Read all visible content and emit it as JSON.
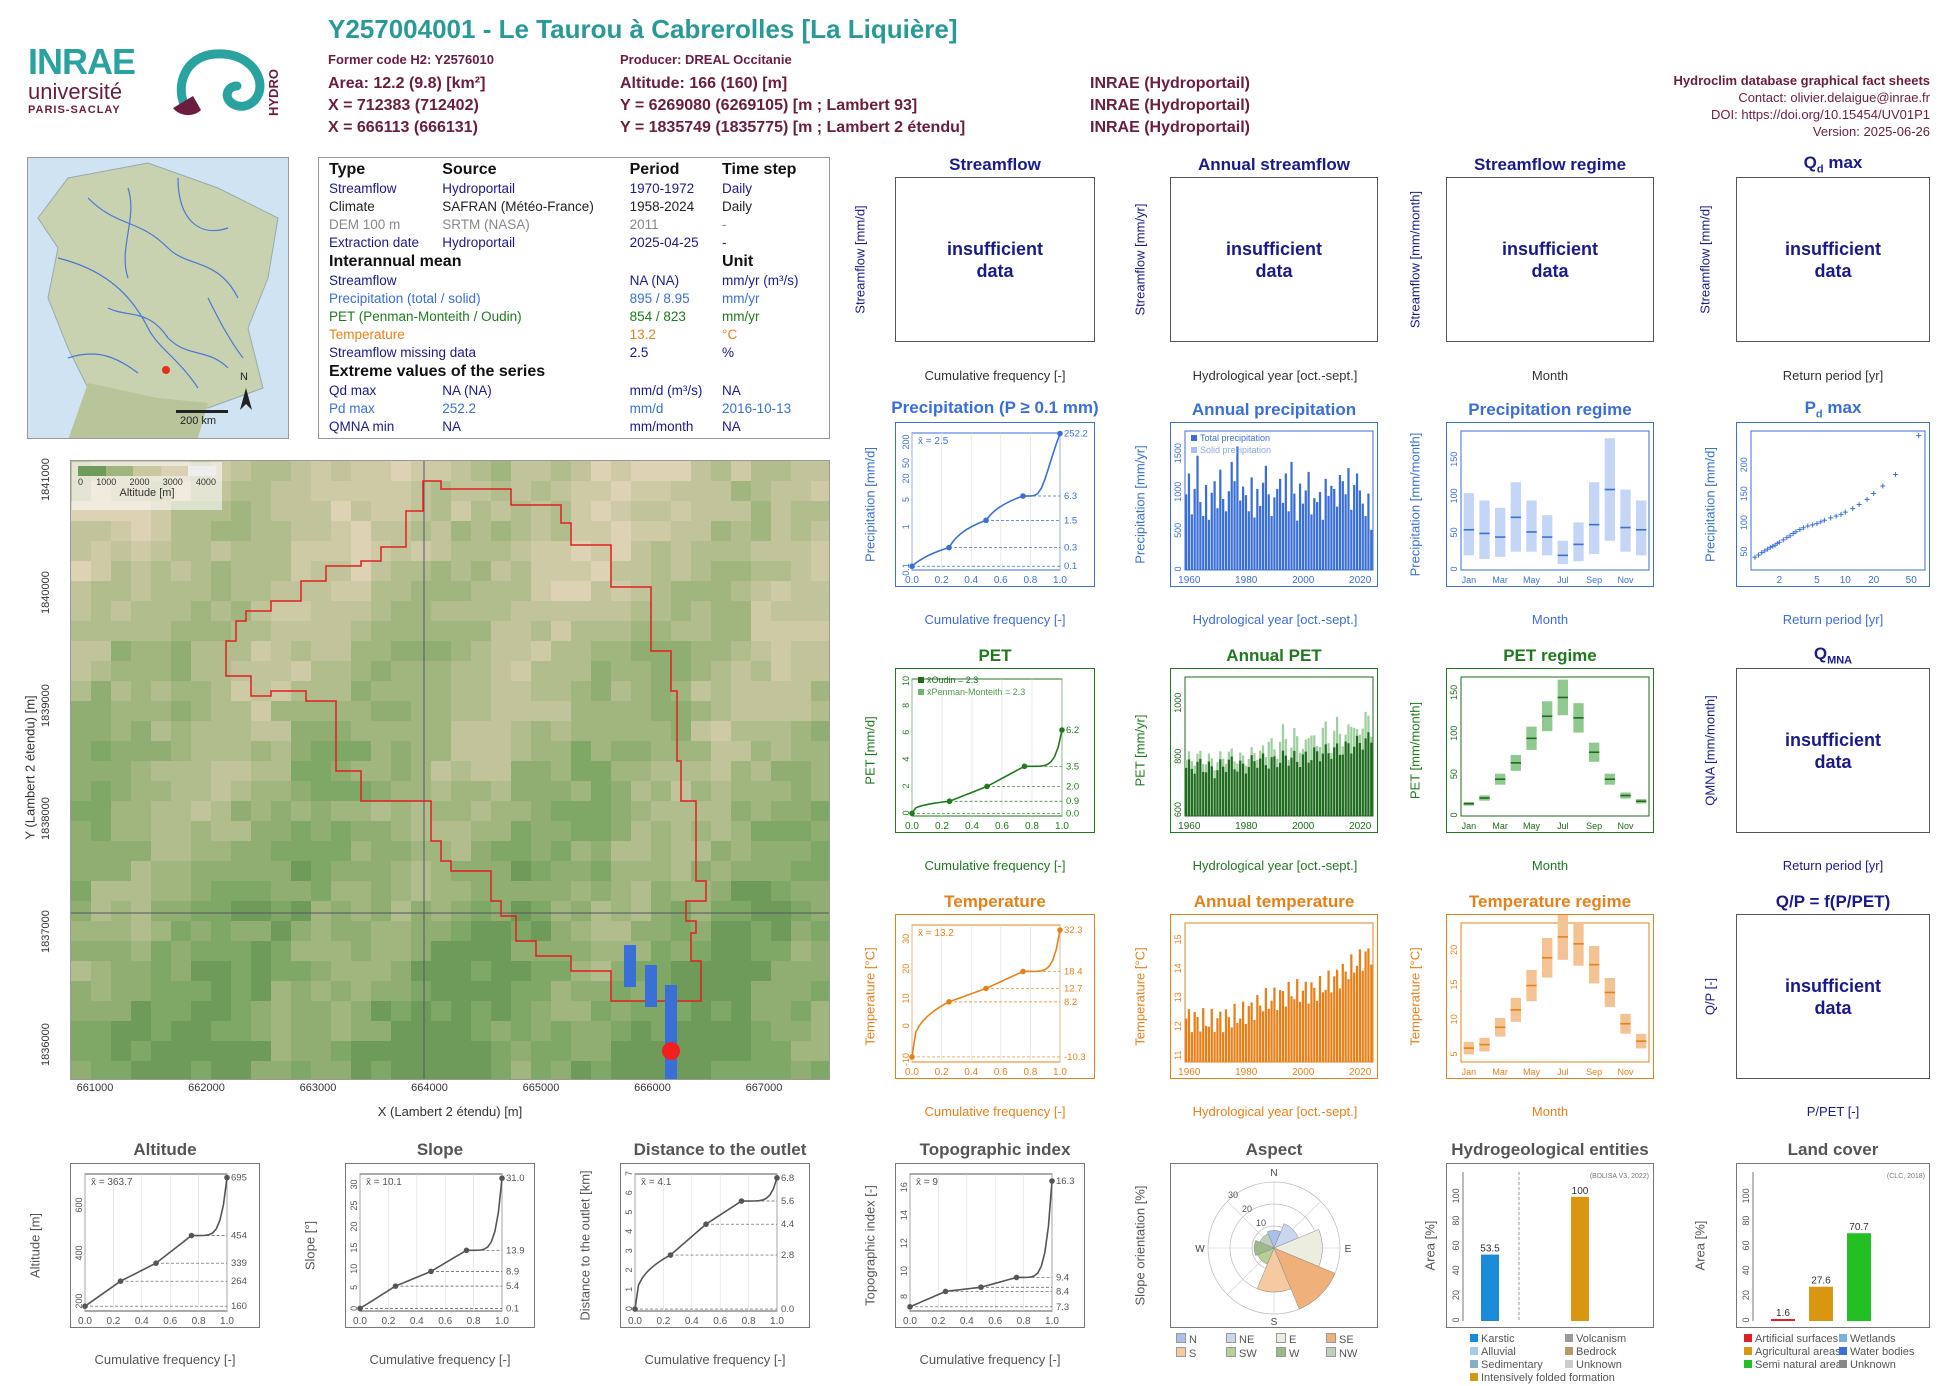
{
  "header": {
    "title": "Y257004001 - Le Taurou à Cabrerolles [La Liquière]",
    "former_code": "Former code H2: Y2576010",
    "producer": "Producer: DREAL Occitanie",
    "area": "Area: 12.2 (9.8) [km²]",
    "altitude": "Altitude: 166 (160) [m]",
    "x1": "X = 712383 (712402)",
    "y1": "Y = 6269080 (6269105) [m ; Lambert 93]",
    "x2": "X = 666113 (666131)",
    "y2": "Y = 1835749 (1835775) [m ; Lambert 2 étendu]",
    "src1": "INRAE (Hydroportail)",
    "src2": "INRAE (Hydroportail)",
    "src3": "INRAE (Hydroportail)",
    "logo_inrae": "INRAE",
    "logo_univ": "université",
    "logo_paris": "PARIS-SACLAY",
    "logo_hydro": "HYDRO"
  },
  "credits": {
    "line1": "Hydroclim database graphical fact sheets",
    "line2": "Contact: olivier.delaigue@inrae.fr",
    "line3": "DOI: https://doi.org/10.15454/UV01P1",
    "line4": "Version: 2025-06-26"
  },
  "map_inset": {
    "north": "N",
    "scale": "200 km"
  },
  "info": {
    "head": {
      "type": "Type",
      "source": "Source",
      "period": "Period",
      "timestep": "Time step"
    },
    "rows": [
      {
        "type": "Streamflow",
        "source": "Hydroportail",
        "period": "1970-1972",
        "timestep": "Daily"
      },
      {
        "type": "Climate",
        "source": "SAFRAN (Météo-France)",
        "period": "1958-2024",
        "timestep": "Daily"
      },
      {
        "type": "DEM 100 m",
        "source": "SRTM (NASA)",
        "period": "2011",
        "timestep": "-"
      },
      {
        "type": "Extraction date",
        "source": "Hydroportail",
        "period": "2025-04-25",
        "timestep": "-"
      }
    ],
    "mean_head": "Interannual mean",
    "unit_head": "Unit",
    "means": [
      {
        "name": "Streamflow",
        "value": "NA (NA)",
        "unit": "mm/yr (m³/s)"
      },
      {
        "name": "Precipitation (total / solid)",
        "value": "895 / 8.95",
        "unit": "mm/yr"
      },
      {
        "name": "PET (Penman-Monteith / Oudin)",
        "value": "854 / 823",
        "unit": "mm/yr"
      },
      {
        "name": "Temperature",
        "value": "13.2",
        "unit": "°C"
      },
      {
        "name": "Streamflow missing data",
        "value": "2.5",
        "unit": "%"
      }
    ],
    "extreme_head": "Extreme values of the series",
    "extremes": [
      {
        "name": "Qd max",
        "value": "NA (NA)",
        "unit": "mm/d (m³/s)",
        "date": "NA"
      },
      {
        "name": "Pd max",
        "value": "252.2",
        "unit": "mm/d",
        "date": "2016-10-13"
      },
      {
        "name": "QMNA min",
        "value": "NA",
        "unit": "mm/month",
        "date": "NA"
      }
    ]
  },
  "dem": {
    "legend_title": "Altitude [m]",
    "legend_ticks": [
      "0",
      "1000",
      "2000",
      "3000",
      "4000"
    ],
    "xlabel": "X (Lambert 2 étendu) [m]",
    "ylabel": "Y (Lambert 2 étendu) [m]",
    "xticks": [
      "661000",
      "662000",
      "663000",
      "664000",
      "665000",
      "666000",
      "667000"
    ],
    "yticks": [
      "1836000",
      "1837000",
      "1838000",
      "1839000",
      "1840000",
      "1841000"
    ]
  },
  "panels": {
    "streamflow": {
      "title": "Streamflow",
      "xlabel": "Cumulative frequency [-]",
      "ylabel": "Streamflow [mm/d]"
    },
    "annual_streamflow": {
      "title": "Annual streamflow",
      "xlabel": "Hydrological year [oct.-sept.]",
      "ylabel": "Streamflow [mm/yr]"
    },
    "streamflow_regime": {
      "title": "Streamflow regime",
      "xlabel": "Month",
      "ylabel": "Streamflow [mm/month]"
    },
    "qd_max": {
      "title": "Q",
      "title_sub": "d",
      "title_rest": " max",
      "xlabel": "Return period [yr]",
      "ylabel": "Streamflow [mm/d]"
    },
    "precip": {
      "title": "Precipitation (P ≥ 0.1 mm)",
      "xlabel": "Cumulative frequency [-]",
      "ylabel": "Precipitation [mm/d]",
      "mean": "x̄ = 2.5"
    },
    "annual_precip": {
      "title": "Annual precipitation",
      "xlabel": "Hydrological year [oct.-sept.]",
      "ylabel": "Precipitation [mm/yr]",
      "legend1": "Total precipitation",
      "legend2": "Solid precipitation"
    },
    "precip_regime": {
      "title": "Precipitation regime",
      "xlabel": "Month",
      "ylabel": "Precipitation [mm/month]"
    },
    "pd_max": {
      "title": "P",
      "title_sub": "d",
      "title_rest": " max",
      "xlabel": "Return period [yr]",
      "ylabel": "Precipitation [mm/d]"
    },
    "pet": {
      "title": "PET",
      "xlabel": "Cumulative frequency [-]",
      "ylabel": "PET [mm/d]",
      "legend1": "x̄Oudin = 2.3",
      "legend2": "x̄Penman-Monteith = 2.3"
    },
    "annual_pet": {
      "title": "Annual PET",
      "xlabel": "Hydrological year [oct.-sept.]",
      "ylabel": "PET [mm/yr]"
    },
    "pet_regime": {
      "title": "PET regime",
      "xlabel": "Month",
      "ylabel": "PET [mm/month]"
    },
    "qmna": {
      "title": "Q",
      "title_sub": "MNA",
      "xlabel": "Return period [yr]",
      "ylabel": "QMNA [mm/month]"
    },
    "temp": {
      "title": "Temperature",
      "xlabel": "Cumulative frequency [-]",
      "ylabel": "Temperature [°C]",
      "mean": "x̄ = 13.2"
    },
    "annual_temp": {
      "title": "Annual temperature",
      "xlabel": "Hydrological year [oct.-sept.]",
      "ylabel": "Temperature [°C]"
    },
    "temp_regime": {
      "title": "Temperature regime",
      "xlabel": "Month",
      "ylabel": "Temperature [°C]"
    },
    "qp": {
      "title": "Q/P = f(P/PET)",
      "xlabel": "P/PET [-]",
      "ylabel": "Q/P [-]"
    },
    "altitude": {
      "title": "Altitude",
      "xlabel": "Cumulative frequency [-]",
      "ylabel": "Altitude [m]",
      "mean": "x̄ = 363.7"
    },
    "slope": {
      "title": "Slope",
      "xlabel": "Cumulative frequency [-]",
      "ylabel": "Slope [°]",
      "mean": "x̄ = 10.1"
    },
    "distance": {
      "title": "Distance to the outlet",
      "xlabel": "Cumulative frequency [-]",
      "ylabel": "Distance to the outlet [km]",
      "mean": "x̄ = 4.1"
    },
    "topo": {
      "title": "Topographic index",
      "xlabel": "Cumulative frequency [-]",
      "ylabel": "Topographic index [-]",
      "mean": "x̄ = 9"
    },
    "aspect": {
      "title": "Aspect",
      "ylabel": "Slope orientation [%]"
    },
    "hydrogeo": {
      "title": "Hydrogeological entities",
      "ylabel": "Area [%]",
      "note": "(BDLISA V3, 2022)"
    },
    "landcover": {
      "title": "Land cover",
      "ylabel": "Area [%]",
      "note": "(CLC, 2018)"
    }
  },
  "insufficient": "insufficient data",
  "chart_data": [
    {
      "type": "line",
      "title": "Precipitation (P ≥ 0.1 mm)",
      "x": [
        0,
        0.25,
        0.5,
        0.75,
        1.0
      ],
      "y": [
        0.1,
        0.3,
        1.5,
        6.3,
        252.2
      ],
      "xlabel": "Cumulative frequency [-]",
      "ylabel": "Precipitation [mm/d]",
      "yscale": "log",
      "ytick_labels": [
        "0.1",
        "1",
        "5",
        "20",
        "50",
        "200"
      ],
      "right_labels": [
        "252.2",
        "6.3",
        "1.5",
        "0.3",
        "0.1"
      ]
    },
    {
      "type": "bar",
      "title": "Annual precipitation",
      "x": [
        1959,
        1960,
        1961,
        1962,
        1963,
        1964,
        1965,
        1966,
        1967,
        1968,
        1969,
        1970,
        1971,
        1972,
        1973,
        1974,
        1975,
        1976,
        1977,
        1978,
        1979,
        1980,
        1981,
        1982,
        1983,
        1984,
        1985,
        1986,
        1987,
        1988,
        1989,
        1990,
        1991,
        1992,
        1993,
        1994,
        1995,
        1996,
        1997,
        1998,
        1999,
        2000,
        2001,
        2002,
        2003,
        2004,
        2005,
        2006,
        2007,
        2008,
        2009,
        2010,
        2011,
        2012,
        2013,
        2014,
        2015,
        2016,
        2017,
        2018,
        2019,
        2020,
        2021,
        2022,
        2023,
        2024
      ],
      "series": [
        {
          "name": "Total precipitation",
          "values": [
            980,
            1250,
            720,
            1050,
            1480,
            880,
            700,
            1100,
            650,
            1000,
            1150,
            800,
            1300,
            920,
            760,
            1020,
            1400,
            1150,
            1600,
            900,
            1080,
            970,
            760,
            1200,
            680,
            1050,
            830,
            1130,
            1350,
            980,
            700,
            940,
            1050,
            1180,
            870,
            1250,
            760,
            1400,
            990,
            640,
            1120,
            860,
            1030,
            1270,
            720,
            930,
            880,
            1010,
            650,
            1180,
            960,
            1090,
            1050,
            820,
            1230,
            1150,
            980,
            1320,
            780,
            1100,
            1250,
            1030,
            860,
            700,
            990,
            520
          ]
        }
      ],
      "ylabel": "Precipitation [mm/yr]",
      "xlabel": "Hydrological year [oct.-sept.]",
      "ytick_labels": [
        "0",
        "500",
        "1000",
        "1500"
      ],
      "xtick_labels": [
        "1960",
        "1980",
        "2000",
        "2020"
      ]
    },
    {
      "type": "boxplot",
      "title": "Precipitation regime",
      "categories": [
        "Jan",
        "Feb",
        "Mar",
        "Apr",
        "May",
        "Jun",
        "Jul",
        "Aug",
        "Sep",
        "Oct",
        "Nov",
        "Dec"
      ],
      "median": [
        55,
        50,
        45,
        72,
        52,
        45,
        20,
        35,
        62,
        110,
        58,
        55
      ],
      "low": [
        20,
        15,
        18,
        25,
        25,
        20,
        8,
        12,
        22,
        40,
        25,
        20
      ],
      "high": [
        105,
        95,
        85,
        120,
        95,
        75,
        40,
        65,
        120,
        180,
        110,
        95
      ],
      "ytick_labels": [
        "0",
        "50",
        "100",
        "150"
      ],
      "xtick_labels": [
        "Jan",
        "Mar",
        "May",
        "Jul",
        "Sep",
        "Nov"
      ]
    },
    {
      "type": "scatter",
      "title": "Pd max",
      "return_period": [
        1.1,
        1.2,
        1.3,
        1.4,
        1.5,
        1.6,
        1.7,
        1.8,
        1.9,
        2,
        2.2,
        2.4,
        2.6,
        2.8,
        3,
        3.3,
        3.6,
        4,
        4.5,
        5,
        5.5,
        6,
        7,
        8,
        9,
        10,
        12,
        14,
        17,
        20,
        25,
        34,
        60
      ],
      "values": [
        42,
        46,
        50,
        53,
        56,
        59,
        61,
        63,
        66,
        68,
        72,
        76,
        79,
        83,
        86,
        90,
        93,
        96,
        98,
        100,
        103,
        106,
        110,
        113,
        116,
        120,
        126,
        133,
        142,
        152,
        165,
        185,
        252
      ],
      "ytick_labels": [
        "50",
        "100",
        "150",
        "200"
      ],
      "xtick_labels": [
        "2",
        "5",
        "10",
        "20",
        "50"
      ]
    },
    {
      "type": "line",
      "title": "PET",
      "x": [
        0,
        0.25,
        0.5,
        0.75,
        1.0
      ],
      "y": [
        0.0,
        0.9,
        2.0,
        3.5,
        6.2
      ],
      "right_labels": [
        "6.2",
        "3.5",
        "2.0",
        "0.9",
        "0.0"
      ],
      "ytick_labels": [
        "0",
        "2",
        "4",
        "6",
        "8",
        "10"
      ]
    },
    {
      "type": "bar",
      "title": "Annual PET",
      "x": [
        1959,
        1964,
        1969,
        1974,
        1979,
        1984,
        1989,
        1994,
        1999,
        2004,
        2009,
        2014,
        2019,
        2024
      ],
      "series": [
        {
          "name": "Oudin",
          "values": [
            760,
            770,
            750,
            780,
            760,
            790,
            780,
            800,
            790,
            810,
            820,
            830,
            850,
            870
          ]
        }
      ],
      "ytick_labels": [
        "600",
        "800",
        "1000"
      ],
      "xtick_labels": [
        "1960",
        "1980",
        "2000",
        "2020"
      ]
    },
    {
      "type": "boxplot",
      "title": "PET regime",
      "categories": [
        "Jan",
        "Feb",
        "Mar",
        "Apr",
        "May",
        "Jun",
        "Jul",
        "Aug",
        "Sep",
        "Oct",
        "Nov",
        "Dec"
      ],
      "median": [
        15,
        22,
        45,
        65,
        95,
        122,
        145,
        120,
        78,
        45,
        25,
        18
      ],
      "ytick_labels": [
        "0",
        "50",
        "100",
        "150"
      ],
      "xtick_labels": [
        "Jan",
        "Mar",
        "May",
        "Jul",
        "Sep",
        "Nov"
      ]
    },
    {
      "type": "line",
      "title": "Temperature",
      "x": [
        0,
        0.25,
        0.5,
        0.75,
        1.0
      ],
      "y": [
        -10.3,
        8.2,
        12.7,
        18.4,
        32.3
      ],
      "right_labels": [
        "32.3",
        "18.4",
        "12.7",
        "8.2",
        "-10.3"
      ],
      "ytick_labels": [
        "-10",
        "0",
        "10",
        "20",
        "30"
      ]
    },
    {
      "type": "bar",
      "title": "Annual temperature",
      "x": [
        1959,
        1969,
        1979,
        1989,
        1999,
        2009,
        2019,
        2024
      ],
      "series": [
        {
          "name": "Temperature",
          "values": [
            12.3,
            12.2,
            12.4,
            12.9,
            13.2,
            13.3,
            13.9,
            14.6
          ]
        }
      ],
      "ytick_labels": [
        "11",
        "12",
        "13",
        "14",
        "15"
      ],
      "xtick_labels": [
        "1960",
        "1980",
        "2000",
        "2020"
      ]
    },
    {
      "type": "boxplot",
      "title": "Temperature regime",
      "categories": [
        "Jan",
        "Feb",
        "Mar",
        "Apr",
        "May",
        "Jun",
        "Jul",
        "Aug",
        "Sep",
        "Oct",
        "Nov",
        "Dec"
      ],
      "median": [
        6,
        6.5,
        9,
        11.5,
        15,
        19,
        22,
        21,
        18,
        14,
        9.5,
        7
      ],
      "ytick_labels": [
        "5",
        "10",
        "15",
        "20"
      ],
      "xtick_labels": [
        "Jan",
        "Mar",
        "May",
        "Jul",
        "Sep",
        "Nov"
      ]
    },
    {
      "type": "line",
      "title": "Altitude",
      "x": [
        0,
        0.25,
        0.5,
        0.75,
        1.0
      ],
      "y": [
        160,
        264,
        339,
        454,
        695
      ],
      "right_labels": [
        "695",
        "454",
        "339",
        "264",
        "160"
      ],
      "ytick_labels": [
        "200",
        "400",
        "600"
      ]
    },
    {
      "type": "line",
      "title": "Slope",
      "x": [
        0,
        0.25,
        0.5,
        0.75,
        1.0
      ],
      "y": [
        0.1,
        5.4,
        8.9,
        13.9,
        31.0
      ],
      "right_labels": [
        "31.0",
        "13.9",
        "8.9",
        "5.4",
        "0.1"
      ],
      "ytick_labels": [
        "0",
        "5",
        "10",
        "15",
        "20",
        "25",
        "30"
      ]
    },
    {
      "type": "line",
      "title": "Distance to the outlet",
      "x": [
        0,
        0.25,
        0.5,
        0.75,
        1.0
      ],
      "y": [
        0.0,
        2.8,
        4.4,
        5.6,
        6.8
      ],
      "right_labels": [
        "6.8",
        "5.6",
        "4.4",
        "2.8",
        "0.0"
      ],
      "ytick_labels": [
        "0",
        "1",
        "2",
        "3",
        "4",
        "5",
        "6",
        "7"
      ]
    },
    {
      "type": "line",
      "title": "Topographic index",
      "x": [
        0,
        0.25,
        0.5,
        0.75,
        1.0
      ],
      "y": [
        7.3,
        8.4,
        8.7,
        9.4,
        16.3
      ],
      "right_labels": [
        "16.3",
        "9.4",
        "8.4",
        "7.3"
      ],
      "ytick_labels": [
        "8",
        "10",
        "12",
        "14",
        "16"
      ]
    },
    {
      "type": "bar",
      "title": "Hydrogeological entities",
      "categories": [
        "Karstic",
        "Intensively folded formation"
      ],
      "values": [
        53.5,
        100
      ],
      "ytick_labels": [
        "0",
        "20",
        "40",
        "60",
        "80",
        "100"
      ],
      "legend": [
        "Karstic",
        "Volcanism",
        "Alluvial",
        "Bedrock",
        "Sedimentary",
        "Unknown",
        "Intensively folded formation"
      ]
    },
    {
      "type": "bar",
      "title": "Land cover",
      "categories": [
        "Artificial surfaces",
        "Agricultural areas",
        "Semi natural areas"
      ],
      "values": [
        1.6,
        27.6,
        70.7
      ],
      "ytick_labels": [
        "0",
        "20",
        "40",
        "60",
        "80",
        "100"
      ],
      "legend": [
        "Artificial surfaces",
        "Wetlands",
        "Agricultural areas",
        "Water bodies",
        "Semi natural areas",
        "Unknown"
      ]
    },
    {
      "type": "pie",
      "title": "Aspect",
      "categories": [
        "N",
        "NE",
        "E",
        "SE",
        "S",
        "SW",
        "W",
        "NW"
      ],
      "values": [
        8,
        12,
        22,
        30,
        20,
        8,
        9,
        7
      ],
      "legend": [
        "N",
        "NE",
        "E",
        "SE",
        "S",
        "SW",
        "W",
        "NW"
      ],
      "ring_labels": [
        "10",
        "20",
        "30"
      ]
    }
  ]
}
